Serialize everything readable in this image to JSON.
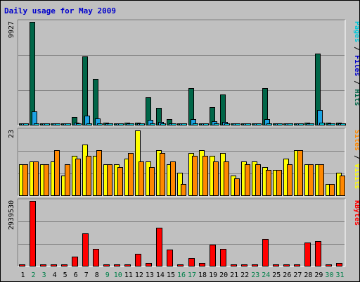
{
  "chart_data": {
    "title": "Daily usage for May 2009",
    "type": "bar",
    "categories": [
      "1",
      "2",
      "3",
      "4",
      "5",
      "6",
      "7",
      "8",
      "9",
      "10",
      "11",
      "12",
      "13",
      "14",
      "15",
      "16",
      "17",
      "18",
      "19",
      "20",
      "21",
      "22",
      "23",
      "24",
      "25",
      "26",
      "27",
      "28",
      "29",
      "30",
      "31"
    ],
    "weekend_days": [
      "2",
      "3",
      "9",
      "10",
      "16",
      "17",
      "23",
      "24",
      "30",
      "31"
    ],
    "colors": {
      "title": "#0000cc",
      "hits": "#006648",
      "files": "#1ca3e3",
      "pages": "#00c8d8",
      "visits": "#ffff00",
      "sites": "#ff8800",
      "kbytes": "#ff0000",
      "weekday_label": "#000000",
      "weekend_label": "#00804a"
    },
    "panels": [
      {
        "id": "hits",
        "ymax_label": "9927",
        "ymax": 9927,
        "side_label_parts": [
          {
            "text": "Pages",
            "color": "#00c8d8"
          },
          {
            "text": " / ",
            "color": "#000000"
          },
          {
            "text": "Files",
            "color": "#0000cc"
          },
          {
            "text": " / ",
            "color": "#000000"
          },
          {
            "text": "Hits",
            "color": "#006648"
          }
        ],
        "series": [
          {
            "name": "Hits",
            "color": "#006648",
            "values": [
              160,
              9927,
              120,
              90,
              130,
              720,
              6600,
              4450,
              210,
              110,
              190,
              230,
              2650,
              1620,
              570,
              80,
              3550,
              110,
              1680,
              2920,
              160,
              140,
              110,
              3520,
              110,
              150,
              160,
              180,
              6850,
              200,
              170
            ]
          },
          {
            "name": "Files",
            "color": "#1ca3e3",
            "values": [
              90,
              1280,
              80,
              60,
              90,
              220,
              880,
              590,
              140,
              80,
              120,
              150,
              490,
              290,
              130,
              50,
              560,
              70,
              310,
              280,
              100,
              90,
              70,
              560,
              80,
              110,
              110,
              120,
              1460,
              140,
              120
            ]
          },
          {
            "name": "Pages",
            "color": "#00c8d8",
            "values": [
              40,
              150,
              30,
              25,
              35,
              60,
              140,
              110,
              40,
              30,
              40,
              50,
              90,
              70,
              40,
              20,
              100,
              30,
              60,
              70,
              40,
              35,
              30,
              90,
              30,
              40,
              40,
              45,
              180,
              45,
              40
            ]
          }
        ]
      },
      {
        "id": "visits",
        "ymax_label": "23",
        "ymax": 23,
        "side_label_parts": [
          {
            "text": "Sites",
            "color": "#ff8800"
          },
          {
            "text": " / ",
            "color": "#000000"
          },
          {
            "text": "Visits",
            "color": "#ffff00"
          }
        ],
        "series": [
          {
            "name": "Visits",
            "color": "#ffff00",
            "values": [
              11,
              12,
              11,
              12,
              7,
              14,
              18,
              14,
              11,
              11,
              13,
              23,
              12,
              16,
              11,
              8,
              15,
              16,
              14,
              15,
              7,
              12,
              12,
              10,
              9,
              13,
              16,
              11,
              11,
              4,
              8
            ]
          },
          {
            "name": "Sites",
            "color": "#ff8800",
            "values": [
              11,
              12,
              11,
              16,
              11,
              13,
              14,
              16,
              11,
              10,
              15,
              12,
              10,
              15,
              12,
              4,
              14,
              14,
              12,
              12,
              6,
              11,
              11,
              9,
              9,
              11,
              16,
              11,
              11,
              4,
              7
            ]
          }
        ]
      },
      {
        "id": "kbytes",
        "ymax_label": "2939530",
        "ymax": 2939530,
        "side_label_parts": [
          {
            "text": "KBytes",
            "color": "#ff0000"
          }
        ],
        "series": [
          {
            "name": "KBytes",
            "color": "#ff0000",
            "values": [
              8000,
              2939530,
              28000,
              8000,
              15000,
              400000,
              1480000,
              780000,
              20000,
              12000,
              40000,
              540000,
              140000,
              1720000,
              740000,
              15000,
              360000,
              140000,
              950000,
              780000,
              15000,
              8000,
              30000,
              1220000,
              12000,
              8000,
              25000,
              1060000,
              1110000,
              12000,
              120000
            ]
          }
        ]
      }
    ]
  }
}
